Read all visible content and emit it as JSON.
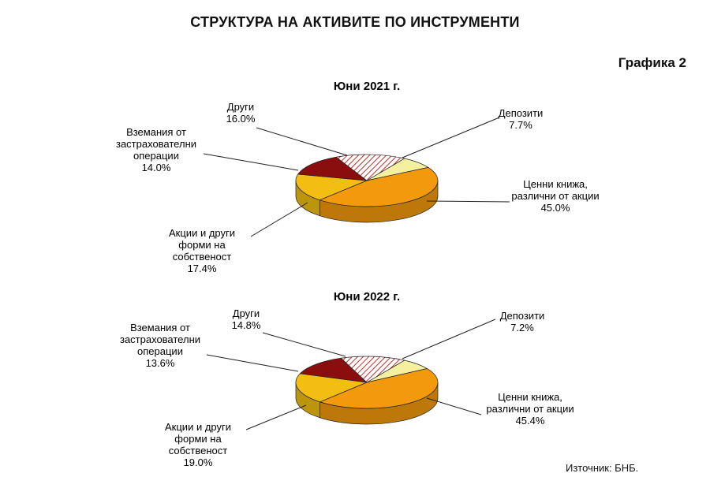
{
  "page": {
    "title": "СТРУКТУРА НА АКТИВИТЕ ПО ИНСТРУМЕНТИ",
    "figure_label": "Графика 2",
    "source": "Източник:  БНБ."
  },
  "colors": {
    "Депозити": "#F5F0A0",
    "Ценни книжа, различни от акции": "#F29A0C",
    "Акции и други форми на собственост": "#F2BE12",
    "Вземания от застрахователни операции": "#8B0E0E",
    "Други": "#F0B8B8"
  },
  "chart_data": [
    {
      "type": "pie",
      "title": "Юни 2021 г.",
      "slices": [
        {
          "label": "Депозити",
          "value": 7.7,
          "value_label": "7.7%"
        },
        {
          "label": "Ценни книжа, различни от акции",
          "value": 45.0,
          "value_label": "45.0%"
        },
        {
          "label": "Акции и други форми на собственост",
          "value": 17.4,
          "value_label": "17.4%"
        },
        {
          "label": "Вземания от застрахователни операции",
          "value": 14.0,
          "value_label": "14.0%"
        },
        {
          "label": "Други",
          "value": 16.0,
          "value_label": "16.0%"
        }
      ]
    },
    {
      "type": "pie",
      "title": "Юни 2022 г.",
      "slices": [
        {
          "label": "Депозити",
          "value": 7.2,
          "value_label": "7.2%"
        },
        {
          "label": "Ценни книжа, различни от акции",
          "value": 45.4,
          "value_label": "45.4%"
        },
        {
          "label": "Акции и други форми на собственост",
          "value": 19.0,
          "value_label": "19.0%"
        },
        {
          "label": "Вземания от застрахователни операции",
          "value": 13.6,
          "value_label": "13.6%"
        },
        {
          "label": "Други",
          "value": 14.8,
          "value_label": "14.8%"
        }
      ]
    }
  ]
}
